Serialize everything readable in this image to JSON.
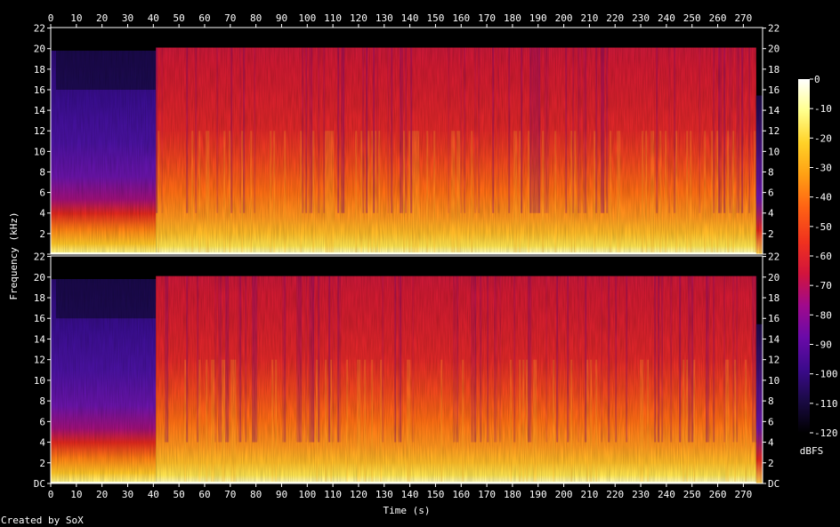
{
  "chart_data": {
    "type": "heatmap",
    "title": "",
    "xlabel": "Time (s)",
    "ylabel": "Frequency (kHz)",
    "credit": "Created by SoX",
    "xlim": [
      0,
      277.5
    ],
    "ylim": [
      0,
      22.05
    ],
    "x_ticks": [
      "0",
      "10",
      "20",
      "30",
      "40",
      "50",
      "60",
      "70",
      "80",
      "90",
      "100",
      "110",
      "120",
      "130",
      "140",
      "150",
      "160",
      "170",
      "180",
      "190",
      "200",
      "210",
      "220",
      "230",
      "240",
      "250",
      "260",
      "270"
    ],
    "y_ticks": [
      "DC",
      "2",
      "4",
      "6",
      "8",
      "10",
      "12",
      "14",
      "16",
      "18",
      "20",
      "22"
    ],
    "channels": [
      "left",
      "right"
    ],
    "colorbar": {
      "label": "dBFS",
      "range": [
        -120,
        0
      ],
      "ticks": [
        "0",
        "-10",
        "-20",
        "-30",
        "-40",
        "-50",
        "-60",
        "-70",
        "-80",
        "-90",
        "-100",
        "-110",
        "-120"
      ],
      "stops": [
        "#000000",
        "#1a0a44",
        "#3c0a8c",
        "#6a0aa8",
        "#a00a8c",
        "#d2143c",
        "#f0321e",
        "#ff6414",
        "#ffa014",
        "#ffd228",
        "#ffff8c",
        "#ffffff"
      ]
    },
    "segments": [
      {
        "from": 0,
        "to": 41,
        "level": "quiet",
        "bandlimit_khz": 19.8
      },
      {
        "from": 41,
        "to": 275,
        "level": "loud",
        "bandlimit_khz": 20.1
      },
      {
        "from": 275,
        "to": 277.5,
        "level": "fade"
      }
    ]
  }
}
